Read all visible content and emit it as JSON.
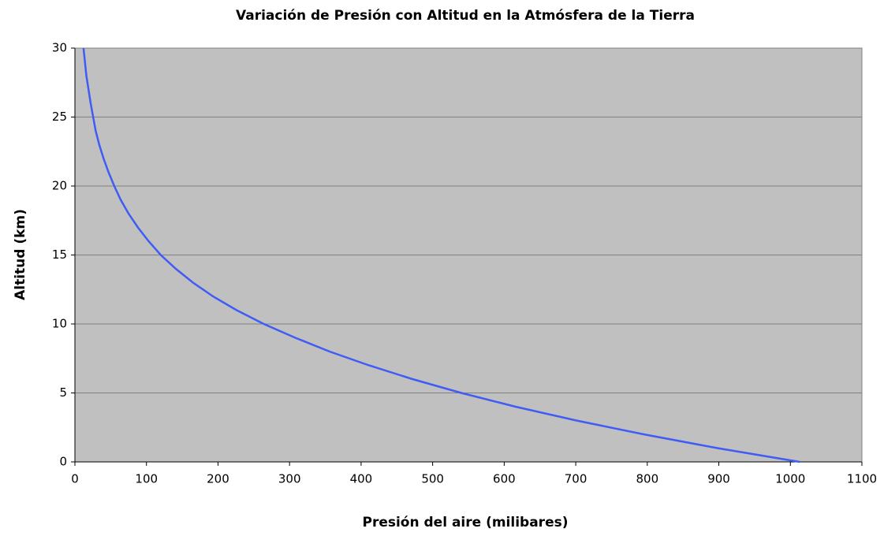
{
  "chart_data": {
    "type": "line",
    "title": "Variación de Presión con Altitud en la Atmósfera de la Tierra",
    "x_label": "Presión del aire (milibares)",
    "y_label": "Altitud  (km)",
    "x": [
      1013,
      898,
      795,
      701,
      616,
      540,
      472,
      411,
      356,
      308,
      264,
      226,
      193,
      165,
      141,
      120,
      103,
      88,
      75,
      64,
      55,
      47,
      40,
      34,
      29,
      25.5,
      22,
      19,
      16,
      14,
      12
    ],
    "values": [
      0,
      1,
      2,
      3,
      4,
      5,
      6,
      7,
      8,
      9,
      10,
      11,
      12,
      13,
      14,
      15,
      16,
      17,
      18,
      19,
      20,
      21,
      22,
      23,
      24,
      25,
      26,
      27,
      28,
      29,
      30
    ],
    "color": "#3f5cf5",
    "xlim": [
      0,
      1100
    ],
    "xticks": [
      0,
      100,
      200,
      300,
      400,
      500,
      600,
      700,
      800,
      900,
      1000,
      1100
    ],
    "ylim": [
      0,
      30
    ],
    "yticks": [
      0,
      5,
      10,
      15,
      20,
      25,
      30
    ],
    "grid": true
  }
}
